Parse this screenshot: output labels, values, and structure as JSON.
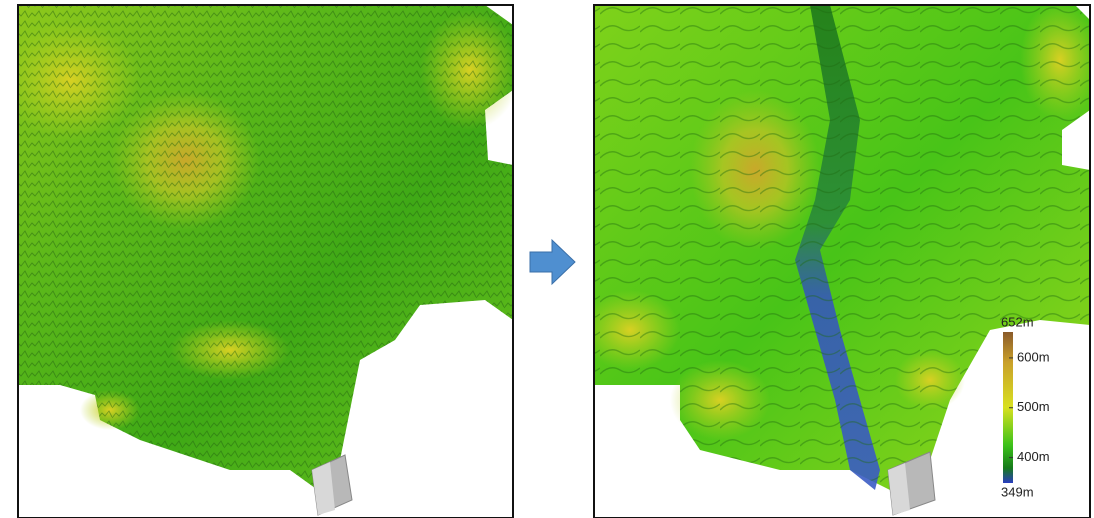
{
  "colorbar": {
    "range": [
      349,
      652
    ],
    "ticks": [
      {
        "value": 652,
        "label": "652m"
      },
      {
        "value": 600,
        "label": "600m"
      },
      {
        "value": 500,
        "label": "500m"
      },
      {
        "value": 400,
        "label": "400m"
      },
      {
        "value": 349,
        "label": "349m"
      }
    ]
  }
}
